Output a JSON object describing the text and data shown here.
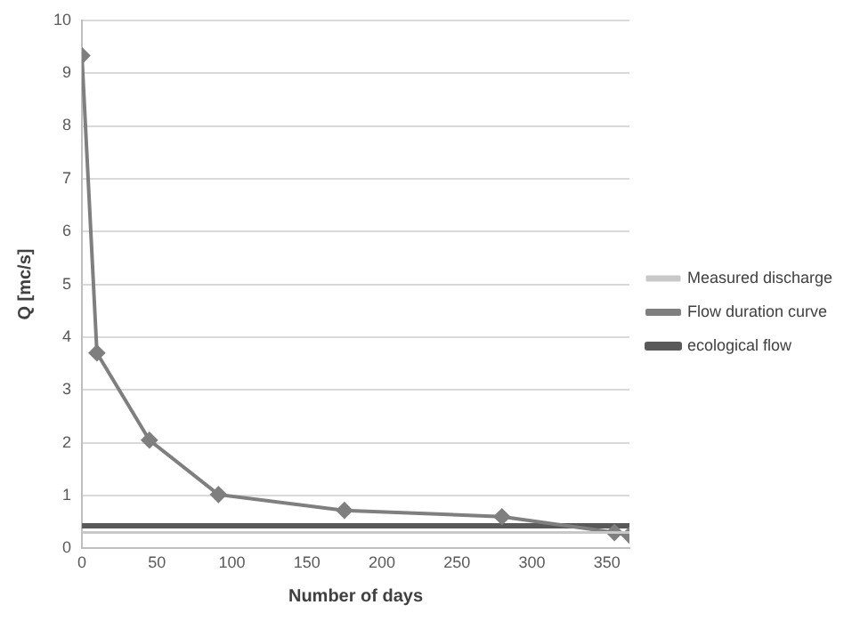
{
  "chart_data": {
    "type": "line",
    "xlabel": "Number of days",
    "ylabel": "Q [mc/s]",
    "xlim": [
      0,
      365
    ],
    "xticks": [
      0,
      50,
      100,
      150,
      200,
      250,
      300,
      350
    ],
    "ylim": [
      0,
      10
    ],
    "yticks": [
      0,
      1,
      2,
      3,
      4,
      5,
      6,
      7,
      8,
      9,
      10
    ],
    "grid": "y",
    "legend": "right",
    "series": [
      {
        "name": "Measured discharge",
        "color": "#c8c8c8",
        "x": [
          0,
          365
        ],
        "values": [
          0.3,
          0.3
        ],
        "marker": "none"
      },
      {
        "name": "Flow duration curve",
        "color": "#7f7f7f",
        "x": [
          0,
          10,
          45,
          91,
          175,
          280,
          355,
          365
        ],
        "values": [
          9.33,
          3.7,
          2.05,
          1.02,
          0.72,
          0.6,
          0.3,
          0.25
        ],
        "marker": "diamond"
      },
      {
        "name": "ecological flow",
        "color": "#595959",
        "x": [
          0,
          365
        ],
        "values": [
          0.43,
          0.43
        ],
        "marker": "none"
      }
    ]
  }
}
